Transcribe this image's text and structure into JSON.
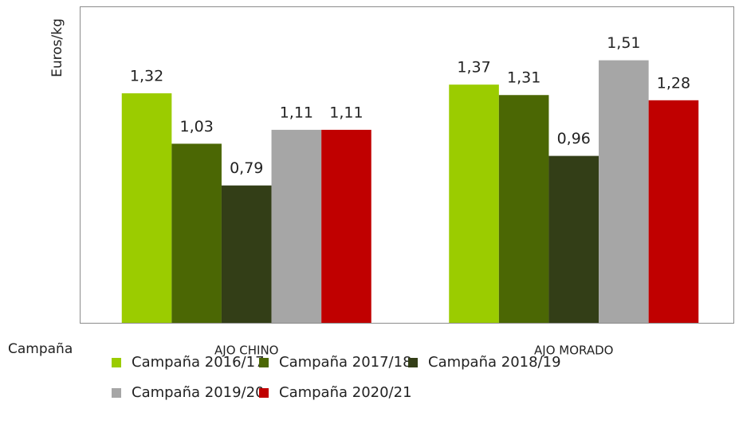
{
  "chart_data": {
    "type": "bar",
    "y_label": "Euros/kg",
    "x_label": "Campaña",
    "categories": [
      "AJO CHINO",
      "AJO MORADO"
    ],
    "series": [
      {
        "name": "Campaña 2016/17",
        "color": "#9bcc00",
        "values": [
          1.32,
          1.37
        ],
        "value_labels": [
          "1,32",
          "1,37"
        ]
      },
      {
        "name": "Campaña 2017/18",
        "color": "#4b6704",
        "values": [
          1.03,
          1.31
        ],
        "value_labels": [
          "1,03",
          "1,31"
        ]
      },
      {
        "name": "Campaña 2018/19",
        "color": "#333e17",
        "values": [
          0.79,
          0.96
        ],
        "value_labels": [
          "0,79",
          "0,96"
        ]
      },
      {
        "name": "Campaña 2019/20",
        "color": "#a6a6a6",
        "values": [
          1.11,
          1.51
        ],
        "value_labels": [
          "1,11",
          "1,51"
        ]
      },
      {
        "name": "Campaña 2020/21",
        "color": "#c00000",
        "values": [
          1.11,
          1.28
        ],
        "value_labels": [
          "1,11",
          "1,28"
        ]
      }
    ],
    "ylim": [
      0,
      1.82
    ]
  }
}
